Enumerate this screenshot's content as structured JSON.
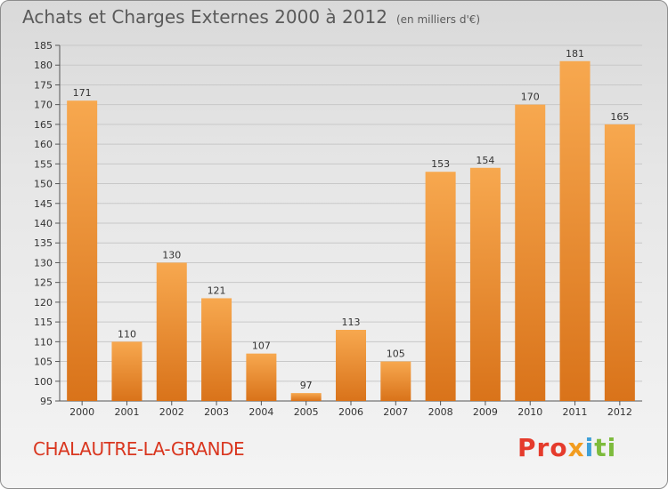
{
  "header": {
    "title": "Achats et Charges Externes 2000 à 2012",
    "unit": "(en milliers d'€)"
  },
  "footer": {
    "town": "CHALAUTRE-LA-GRANDE",
    "logo_parts": [
      "Pro",
      "x",
      "i",
      "ti"
    ]
  },
  "colors": {
    "bar_top": "#f7a84f",
    "bar_bottom": "#d9731a",
    "grid": "#c8c8c8",
    "town": "#d9361f"
  },
  "chart_data": {
    "type": "bar",
    "categories": [
      "2000",
      "2001",
      "2002",
      "2003",
      "2004",
      "2005",
      "2006",
      "2007",
      "2008",
      "2009",
      "2010",
      "2011",
      "2012"
    ],
    "values": [
      171,
      110,
      130,
      121,
      107,
      97,
      113,
      105,
      153,
      154,
      170,
      181,
      165
    ],
    "ylim": [
      95,
      185
    ],
    "yticks": [
      95,
      100,
      105,
      110,
      115,
      120,
      125,
      130,
      135,
      140,
      145,
      150,
      155,
      160,
      165,
      170,
      175,
      180,
      185
    ],
    "grid": true,
    "title": "Achats et Charges Externes 2000 à 2012",
    "ylabel": "(en milliers d'€)"
  }
}
